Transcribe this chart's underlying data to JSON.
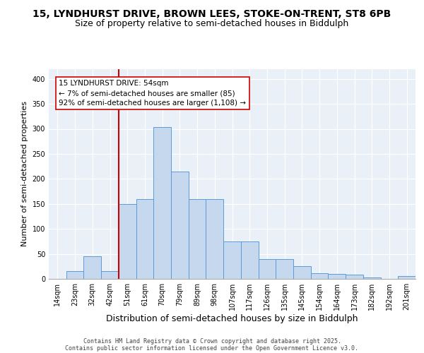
{
  "title_line1": "15, LYNDHURST DRIVE, BROWN LEES, STOKE-ON-TRENT, ST8 6PB",
  "title_line2": "Size of property relative to semi-detached houses in Biddulph",
  "xlabel": "Distribution of semi-detached houses by size in Biddulph",
  "ylabel": "Number of semi-detached properties",
  "categories": [
    "14sqm",
    "23sqm",
    "32sqm",
    "42sqm",
    "51sqm",
    "61sqm",
    "70sqm",
    "79sqm",
    "89sqm",
    "98sqm",
    "107sqm",
    "117sqm",
    "126sqm",
    "135sqm",
    "145sqm",
    "154sqm",
    "164sqm",
    "173sqm",
    "182sqm",
    "192sqm",
    "201sqm"
  ],
  "values": [
    0,
    15,
    45,
    15,
    150,
    160,
    303,
    215,
    160,
    160,
    75,
    75,
    40,
    40,
    25,
    12,
    10,
    8,
    3,
    0,
    5
  ],
  "bar_color": "#c5d8ed",
  "bar_edge_color": "#5b9bd5",
  "vline_color": "#cc0000",
  "vline_x_index": 4,
  "annotation_text": "15 LYNDHURST DRIVE: 54sqm\n← 7% of semi-detached houses are smaller (85)\n92% of semi-detached houses are larger (1,108) →",
  "annotation_box_facecolor": "#ffffff",
  "annotation_box_edgecolor": "#cc0000",
  "ylim": [
    0,
    420
  ],
  "yticks": [
    0,
    50,
    100,
    150,
    200,
    250,
    300,
    350,
    400
  ],
  "bg_color": "#eaf0f8",
  "footer_line1": "Contains HM Land Registry data © Crown copyright and database right 2025.",
  "footer_line2": "Contains public sector information licensed under the Open Government Licence v3.0.",
  "title_fontsize": 10,
  "subtitle_fontsize": 9,
  "tick_fontsize": 7,
  "ylabel_fontsize": 8,
  "xlabel_fontsize": 9,
  "footer_fontsize": 6,
  "annot_fontsize": 7.5
}
